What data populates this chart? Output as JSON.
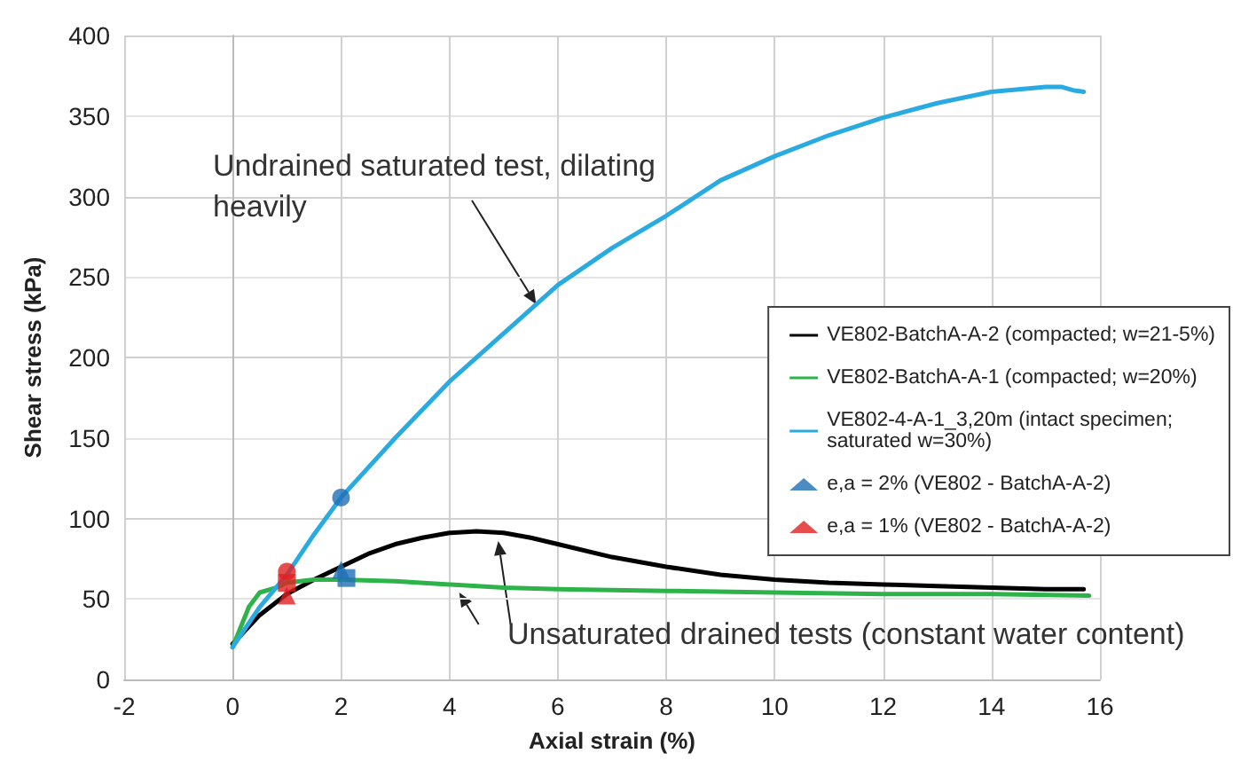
{
  "chart_data": {
    "type": "line",
    "xlabel": "Axial strain (%)",
    "ylabel": "Shear stress (kPa)",
    "xlim": [
      -2,
      16
    ],
    "xticks": [
      -2,
      0,
      2,
      4,
      6,
      8,
      10,
      12,
      14,
      16
    ],
    "ylim": [
      0,
      400
    ],
    "yticks": [
      0,
      50,
      100,
      150,
      200,
      250,
      300,
      350,
      400
    ],
    "grid": true,
    "legend": "right",
    "marker": "none",
    "line_style": "solid",
    "series": [
      {
        "name": "VE802-BatchA-A-2 (compacted; w=21-5%)",
        "color": "#000000",
        "x": [
          0,
          0.5,
          1,
          1.5,
          2,
          2.5,
          3,
          3.5,
          4,
          4.5,
          5,
          5.5,
          6,
          7,
          8,
          9,
          10,
          11,
          12,
          13,
          14,
          15,
          15.7
        ],
        "values": [
          22,
          40,
          53,
          62,
          70,
          78,
          84,
          88,
          91,
          92,
          91,
          88,
          84,
          76,
          70,
          65,
          62,
          60,
          59,
          58,
          57,
          56,
          56
        ]
      },
      {
        "name": "VE802-BatchA-A-1 (compacted; w=20%)",
        "color": "#2db34a",
        "x": [
          0,
          0.3,
          0.5,
          0.8,
          1,
          1.5,
          2,
          3,
          4,
          5,
          6,
          8,
          10,
          12,
          14,
          15.8
        ],
        "values": [
          20,
          45,
          54,
          57,
          60,
          62,
          62,
          61,
          59,
          57,
          56,
          55,
          54,
          53,
          53,
          52
        ]
      },
      {
        "name": "VE802-4-A-1_3,20m (intact specimen; saturated w=30%)",
        "color": "#29abe2",
        "x": [
          0,
          0.5,
          1,
          1.5,
          2,
          3,
          4,
          5,
          6,
          7,
          8,
          9,
          10,
          11,
          12,
          13,
          14,
          15,
          15.3,
          15.5,
          15.7
        ],
        "values": [
          20,
          45,
          65,
          90,
          113,
          150,
          185,
          215,
          245,
          268,
          288,
          310,
          325,
          338,
          349,
          358,
          365,
          368,
          368,
          366,
          365
        ]
      },
      {
        "name": "e,a = 2% (VE802 - BatchA-A-2)",
        "type": "scatter",
        "marker": "triangle",
        "color": "#1f6fb5",
        "x": [
          2
        ],
        "values": [
          68
        ]
      },
      {
        "name": "e,a = 1% (VE802 - BatchA-A-2)",
        "type": "scatter",
        "marker": "triangle",
        "color": "#e02020",
        "x": [
          1
        ],
        "values": [
          52
        ]
      },
      {
        "type": "scatter",
        "marker": "circle",
        "color": "#1f6fb5",
        "x": [
          2
        ],
        "values": [
          113
        ]
      },
      {
        "type": "scatter",
        "marker": "square",
        "color": "#1f6fb5",
        "x": [
          2.1
        ],
        "values": [
          63
        ]
      },
      {
        "type": "scatter",
        "marker": "circle",
        "color": "#e02020",
        "x": [
          1
        ],
        "values": [
          67
        ]
      },
      {
        "type": "scatter",
        "marker": "square",
        "color": "#e02020",
        "x": [
          1
        ],
        "values": [
          60
        ]
      }
    ],
    "annotations": [
      {
        "text": "Undrained saturated test, dilating heavily",
        "x": 5.6,
        "y": 233
      },
      {
        "text": "Unsaturated drained tests (constant water content)",
        "x": 4.9,
        "y": 86
      }
    ]
  }
}
